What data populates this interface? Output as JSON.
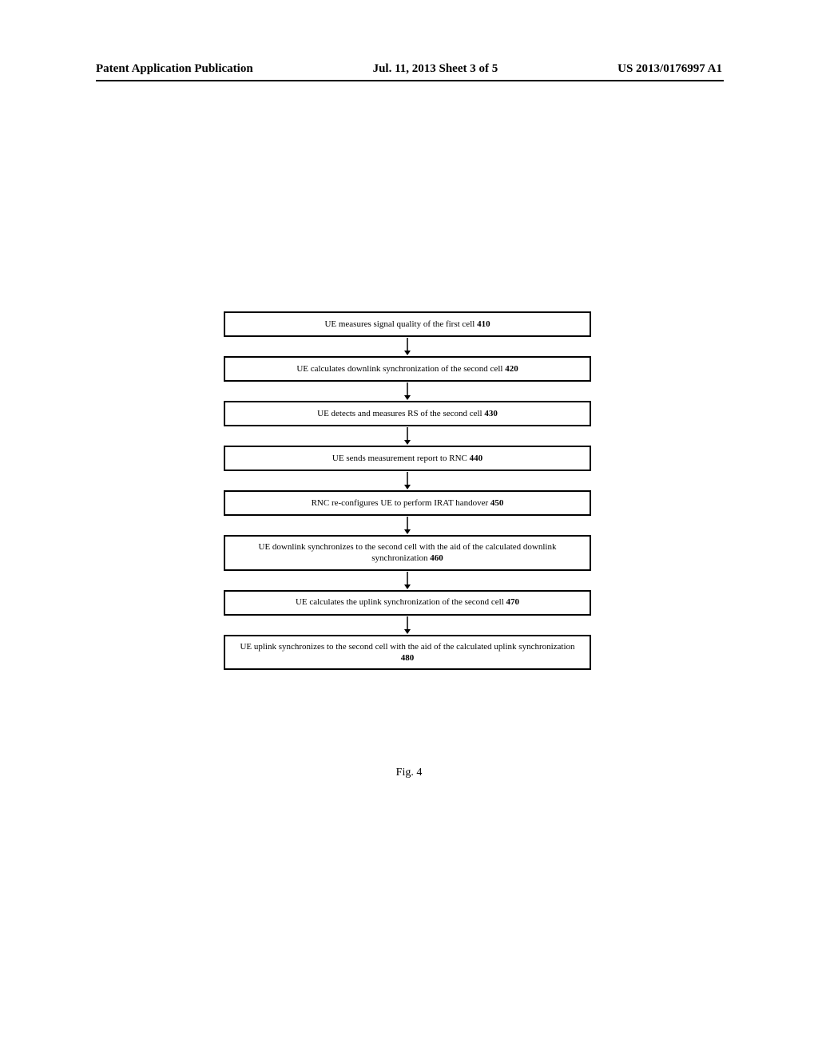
{
  "header": {
    "left": "Patent Application Publication",
    "center": "Jul. 11, 2013  Sheet 3 of 5",
    "right": "US 2013/0176997 A1"
  },
  "flowchart": {
    "steps": [
      {
        "text": "UE measures signal quality of the first cell",
        "number": "410",
        "tall": false
      },
      {
        "text": "UE calculates downlink synchronization of the second cell",
        "number": "420",
        "tall": false
      },
      {
        "text": "UE detects and measures RS of the second cell",
        "number": "430",
        "tall": false
      },
      {
        "text": "UE  sends measurement report to RNC",
        "number": "440",
        "tall": false
      },
      {
        "text": "RNC re-configures UE to perform IRAT handover",
        "number": "450",
        "tall": false
      },
      {
        "text": "UE downlink synchronizes to the second cell with the aid of the calculated downlink synchronization",
        "number": "460",
        "tall": true
      },
      {
        "text": "UE calculates the uplink synchronization of the second cell",
        "number": "470",
        "tall": false
      },
      {
        "text": "UE uplink synchronizes to the second cell with the aid of the calculated uplink synchronization",
        "number": "480",
        "tall": true
      }
    ]
  },
  "figure_caption": "Fig. 4",
  "arrow": {
    "color": "#000000",
    "line_width": 1.5,
    "head_width": 8,
    "head_height": 6,
    "total_height": 22
  }
}
